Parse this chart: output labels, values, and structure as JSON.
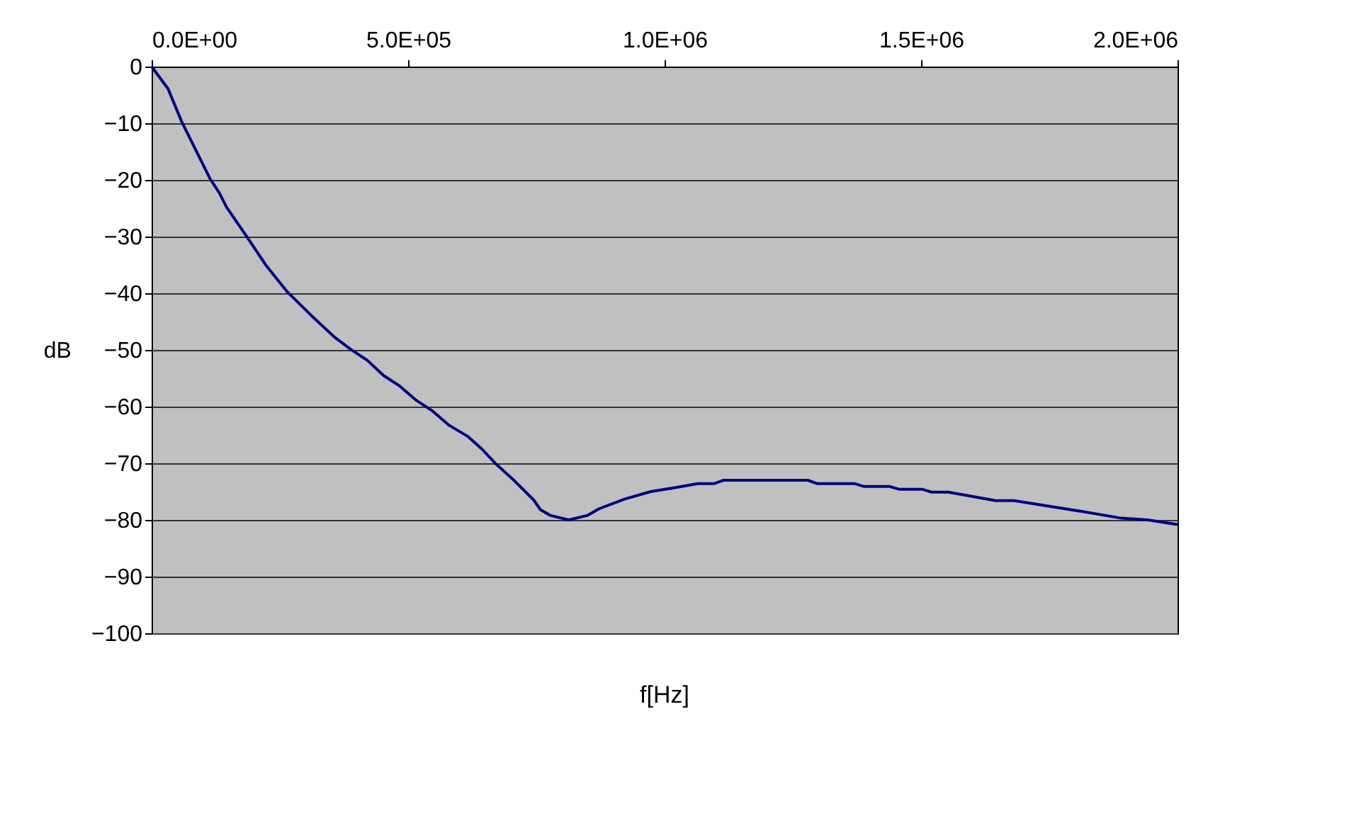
{
  "chart_data": {
    "type": "line",
    "xlabel": "f[Hz]",
    "ylabel": "dB",
    "x": [
      0,
      32000,
      59000,
      114000,
      132000,
      146000,
      187000,
      224000,
      265000,
      311000,
      356000,
      388000,
      420000,
      452000,
      484000,
      516000,
      548000,
      580000,
      617000,
      644000,
      672000,
      704000,
      745000,
      758000,
      777000,
      813000,
      850000,
      873000,
      923000,
      973000,
      1014000,
      1065000,
      1096000,
      1115000,
      1279000,
      1298000,
      1371000,
      1389000,
      1439000,
      1458000,
      1503000,
      1521000,
      1553000,
      1645000,
      1681000,
      1800000,
      1891000,
      1942000,
      2000000
    ],
    "series": [
      {
        "color": "#000080",
        "values": [
          0,
          -3.9,
          -9.8,
          -19.8,
          -22.3,
          -24.8,
          -30.2,
          -35.2,
          -39.8,
          -43.9,
          -47.7,
          -49.9,
          -51.8,
          -54.5,
          -56.4,
          -58.9,
          -60.8,
          -63.3,
          -65.3,
          -67.5,
          -70.2,
          -72.8,
          -76.5,
          -78.2,
          -79.2,
          -80,
          -79.2,
          -78,
          -76.3,
          -75,
          -74.4,
          -73.6,
          -73.6,
          -73,
          -73,
          -73.6,
          -73.6,
          -74.1,
          -74.1,
          -74.6,
          -74.6,
          -75.1,
          -75.1,
          -76.6,
          -76.6,
          -78.3,
          -79.7,
          -80,
          -80.8
        ]
      }
    ],
    "xlim": [
      0,
      2000000
    ],
    "xticks": [
      {
        "value": 0,
        "label": "0.0E+00"
      },
      {
        "value": 500000,
        "label": "5.0E+05"
      },
      {
        "value": 1000000,
        "label": "1.0E+06"
      },
      {
        "value": 1500000,
        "label": "1.5E+06"
      },
      {
        "value": 2000000,
        "label": "2.0E+06"
      }
    ],
    "ylim": [
      -100,
      0
    ],
    "yticks": [
      0,
      -10,
      -20,
      -30,
      -40,
      -50,
      -60,
      -70,
      -80,
      -90,
      -100
    ],
    "grid": "y",
    "marker": "none",
    "line_style": "solid"
  }
}
